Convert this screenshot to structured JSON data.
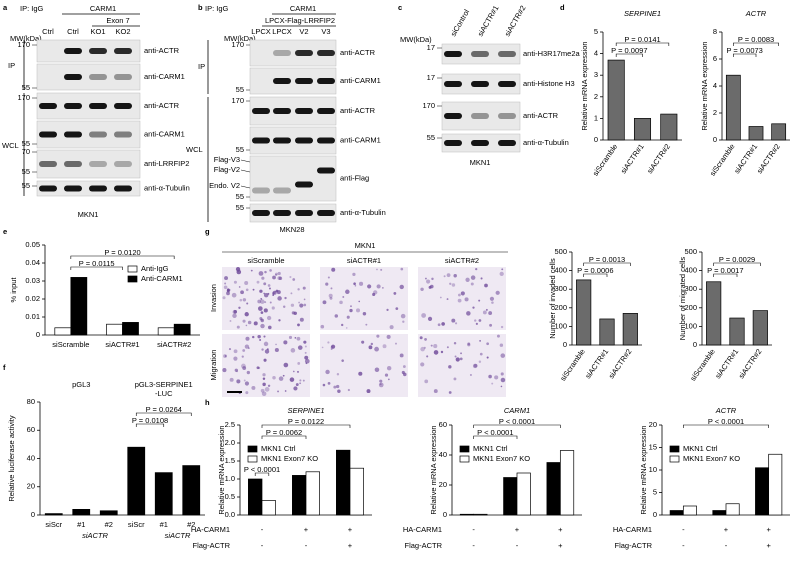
{
  "panel_labels": [
    "a",
    "b",
    "c",
    "d",
    "e",
    "f",
    "g",
    "h"
  ],
  "blots": [
    {
      "ip_label": "IP: IgG",
      "header": "CARM1",
      "subheader": "Exon 7",
      "lanes": [
        "Ctrl",
        "Ctrl",
        "KO1",
        "KO2"
      ],
      "mw_title": "MW(kDa)",
      "sections": [
        "IP",
        "WCL"
      ],
      "rows": [
        {
          "label": "anti-ACTR",
          "mw": [
            "170"
          ]
        },
        {
          "label": "anti-CARM1",
          "mw": [
            "55"
          ]
        },
        {
          "label": "anti-ACTR",
          "mw": [
            "170"
          ]
        },
        {
          "label": "anti-CARM1",
          "mw": [
            "55"
          ]
        },
        {
          "label": "anti-LRRFIP2",
          "mw": [
            "70",
            "55"
          ]
        },
        {
          "label": "anti-α-Tubulin",
          "mw": [
            "55"
          ]
        }
      ],
      "cell_line": "MKN1"
    },
    {
      "ip_label": "IP: IgG",
      "header": "CARM1",
      "subheader": "LPCX-Flag-LRRFIP2",
      "lanes": [
        "LPCX",
        "LPCX",
        "V2",
        "V3"
      ],
      "mw_title": "MW(kDa)",
      "sections": [
        "IP",
        "WCL"
      ],
      "rows": [
        {
          "label": "anti-ACTR",
          "mw": [
            "170"
          ]
        },
        {
          "label": "anti-CARM1",
          "mw": [
            "55"
          ]
        },
        {
          "label": "anti-ACTR",
          "mw": [
            "170"
          ]
        },
        {
          "label": "anti-CARM1",
          "mw": [
            "55"
          ]
        },
        {
          "label": "anti-Flag",
          "mw": [
            "55"
          ]
        },
        {
          "label": "anti-α-Tubulin",
          "mw": [
            "55"
          ]
        }
      ],
      "side_labels": [
        "Flag-V3",
        "Flag-V2",
        "Endo. V2"
      ],
      "cell_line": "MKN28"
    },
    {
      "lanes": [
        "siControl",
        "siACTR#1",
        "siACTR#2"
      ],
      "mw_title": "MW(kDa)",
      "rows": [
        {
          "label": "anti-H3R17me2a",
          "mw": [
            "17"
          ]
        },
        {
          "label": "anti-Histone H3",
          "mw": [
            "17"
          ]
        },
        {
          "label": "anti-ACTR",
          "mw": [
            "170"
          ]
        },
        {
          "label": "anti-α-Tubulin",
          "mw": [
            "55"
          ]
        }
      ],
      "cell_line": "MKN1"
    }
  ],
  "image_panel": {
    "title": "MKN1",
    "columns": [
      "siScramble",
      "siACTR#1",
      "siACTR#2"
    ],
    "rows": [
      "Invasion",
      "Migration"
    ]
  },
  "chart_data": [
    {
      "type": "bar",
      "title": "SERPINE1",
      "ylabel": "Relative mRNA expression",
      "categories": [
        "siScramble",
        "siACTR#1",
        "siACTR#2"
      ],
      "values": [
        3.7,
        1.0,
        1.2
      ],
      "color": "#6b6b6b",
      "ylim": [
        0,
        5
      ],
      "yticks": [
        0,
        1,
        2,
        3,
        4,
        5
      ],
      "annotations": [
        "P = 0.0141",
        "P = 0.0097"
      ]
    },
    {
      "type": "bar",
      "title": "ACTR",
      "ylabel": "Relative mRNA expression",
      "categories": [
        "siScramble",
        "siACTR#1",
        "siACTR#2"
      ],
      "values": [
        4.8,
        1.0,
        1.2
      ],
      "color": "#6b6b6b",
      "ylim": [
        0,
        8
      ],
      "yticks": [
        0,
        2,
        4,
        6,
        8
      ],
      "annotations": [
        "P = 0.0083",
        "P = 0.0073"
      ]
    },
    {
      "type": "bar",
      "ylabel": "% input",
      "categories": [
        "siScramble",
        "siACTR#1",
        "siACTR#2"
      ],
      "series": [
        {
          "name": "Anti-IgG",
          "color": "#ffffff",
          "values": [
            0.004,
            0.006,
            0.004
          ]
        },
        {
          "name": "Anti-CARM1",
          "color": "#000000",
          "values": [
            0.032,
            0.007,
            0.006
          ]
        }
      ],
      "ylim": [
        0,
        0.05
      ],
      "yticks": [
        0,
        0.01,
        0.02,
        0.03,
        0.04,
        0.05
      ],
      "legend": "top-right",
      "annotations": [
        "P = 0.0120",
        "P = 0.0115"
      ]
    },
    {
      "type": "bar",
      "ylabel": "Relative luciferase activity",
      "categories": [
        "siScr",
        "#1",
        "#2",
        "siScr",
        "#1",
        "#2"
      ],
      "values": [
        1,
        4,
        3,
        48,
        30,
        35
      ],
      "color": "#000000",
      "ylim": [
        0,
        80
      ],
      "yticks": [
        0,
        20,
        40,
        60,
        80
      ],
      "group_labels": [
        [
          "pGL3"
        ],
        [
          "pGL3-SERPINE1",
          "-LUC"
        ]
      ],
      "sub_labels": [
        "siACTR",
        "siACTR"
      ],
      "annotations": [
        "P = 0.0264",
        "P = 0.0108"
      ]
    },
    {
      "type": "bar",
      "ylabel": "Number of invaded cells",
      "categories": [
        "siScramble",
        "siACTR#1",
        "siACTR#2"
      ],
      "values": [
        350,
        140,
        170
      ],
      "color": "#6b6b6b",
      "ylim": [
        0,
        500
      ],
      "yticks": [
        0,
        100,
        200,
        300,
        400,
        500
      ],
      "annotations": [
        "P = 0.0013",
        "P = 0.0006"
      ]
    },
    {
      "type": "bar",
      "ylabel": "Number of migrated cells",
      "categories": [
        "siScramble",
        "siACTR#1",
        "siACTR#2"
      ],
      "values": [
        340,
        145,
        185
      ],
      "color": "#6b6b6b",
      "ylim": [
        0,
        500
      ],
      "yticks": [
        0,
        100,
        200,
        300,
        400,
        500
      ],
      "annotations": [
        "P = 0.0029",
        "P = 0.0017"
      ]
    },
    {
      "type": "bar",
      "title": "SERPINE1",
      "ylabel": "Relative mRNA expression",
      "categories": [
        null,
        null,
        null
      ],
      "series": [
        {
          "name": "MKN1 Ctrl",
          "color": "#000000",
          "values": [
            1.0,
            1.1,
            1.8
          ]
        },
        {
          "name": "MKN1 Exon7 KO",
          "color": "#ffffff",
          "values": [
            0.4,
            1.2,
            1.3
          ]
        }
      ],
      "ylim": [
        0,
        2.5
      ],
      "yticks": [
        {
          "value": 0,
          "label": "0.0"
        },
        0.5,
        {
          "value": 1,
          "label": "1.0"
        },
        1.5,
        {
          "value": 2,
          "label": "2.0"
        },
        2.5
      ],
      "legend": "top-left",
      "annotations": [
        "P = 0.0122",
        "P = 0.0062",
        "P < 0.0001"
      ],
      "conditions": [
        {
          "name": "HA-CARM1",
          "values": [
            "-",
            "+",
            "+"
          ]
        },
        {
          "name": "Flag-ACTR",
          "values": [
            "-",
            "-",
            "+"
          ]
        }
      ]
    },
    {
      "type": "bar",
      "title": "CARM1",
      "ylabel": "Relative mRNA expression",
      "categories": [
        null,
        null,
        null
      ],
      "series": [
        {
          "name": "MKN1 Ctrl",
          "color": "#000000",
          "values": [
            0.5,
            25,
            35
          ]
        },
        {
          "name": "MKN1 Exon7 KO",
          "color": "#ffffff",
          "values": [
            0.5,
            28,
            43
          ]
        }
      ],
      "ylim": [
        0,
        60
      ],
      "yticks": [
        0,
        20,
        40,
        60
      ],
      "legend": "top-left",
      "annotations": [
        "P < 0.0001",
        "P < 0.0001"
      ],
      "conditions": [
        {
          "name": "HA-CARM1",
          "values": [
            "-",
            "+",
            "+"
          ]
        },
        {
          "name": "Flag-ACTR",
          "values": [
            "-",
            "-",
            "+"
          ]
        }
      ]
    },
    {
      "type": "bar",
      "title": "ACTR",
      "ylabel": "Relative mRNA expression",
      "categories": [
        null,
        null,
        null
      ],
      "series": [
        {
          "name": "MKN1 Ctrl",
          "color": "#000000",
          "values": [
            1,
            1,
            10.5
          ]
        },
        {
          "name": "MKN1 Exon7 KO",
          "color": "#ffffff",
          "values": [
            2,
            2.5,
            13.5
          ]
        }
      ],
      "ylim": [
        0,
        20
      ],
      "yticks": [
        0,
        5,
        10,
        15,
        20
      ],
      "legend": "top-left",
      "annotations": [
        "P < 0.0001"
      ],
      "conditions": [
        {
          "name": "HA-CARM1",
          "values": [
            "-",
            "+",
            "+"
          ]
        },
        {
          "name": "Flag-ACTR",
          "values": [
            "-",
            "-",
            "+"
          ]
        }
      ]
    }
  ]
}
